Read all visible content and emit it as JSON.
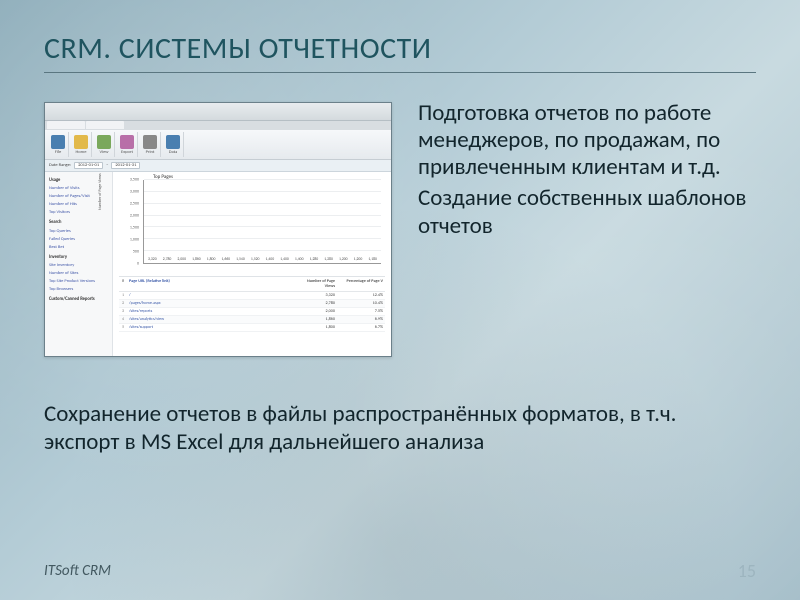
{
  "slide": {
    "title": "CRM. СИСТЕМЫ ОТЧЕТНОСТИ",
    "para1": "Подготовка отчетов по работе менеджеров, по продажам, по привлеченным клиентам и т.д.",
    "para2": "Создание собственных шаблонов отчетов",
    "para3": "Сохранение отчетов в файлы распространённых форматов, в т.ч. экспорт в MS Excel для дальнейшего анализа",
    "footer_left": "ITSoft CRM",
    "page_number": "15",
    "title_color": "#1f545f",
    "body_color": "#12252c",
    "title_fontsize": 30,
    "body_fontsize": 23
  },
  "screenshot": {
    "ribbon_labels": [
      "File",
      "Home",
      "View",
      "Export",
      "Print",
      "Data"
    ],
    "filter_date_label": "Date Range:",
    "filter_from": "2012-01-01",
    "filter_to": "2012-01-31",
    "leftnav": {
      "sections": [
        {
          "header": "Usage",
          "items": [
            "Number of Visits",
            "Number of Pages/Visit",
            "Number of Hits",
            "Top Visitors"
          ]
        },
        {
          "header": "Search",
          "items": [
            "Top Queries",
            "Failed Queries",
            "Best Bet"
          ]
        },
        {
          "header": "Inventory",
          "items": [
            "Site Inventory",
            "Number of Sites",
            "Top Site Product Versions",
            "Top Browsers"
          ]
        },
        {
          "header": "Custom/Canned Reports",
          "items": []
        }
      ]
    },
    "chart": {
      "type": "bar",
      "title": "Top Pages",
      "y_title": "Number of Page Views",
      "ylim": [
        0,
        3500
      ],
      "ytick_step": 500,
      "yticks": [
        0,
        500,
        1000,
        1500,
        2000,
        2500,
        3000,
        3500
      ],
      "values": [
        3320,
        2780,
        2000,
        1860,
        1800,
        1660,
        1540,
        1520,
        1400,
        1400,
        1400,
        1280,
        1280,
        1200,
        1200,
        1180
      ],
      "labels": [
        "3,320",
        "2,780",
        "2,000",
        "1,860",
        "1,800",
        "1,660",
        "1,540",
        "1,520",
        "1,400",
        "1,400",
        "1,400",
        "1,280",
        "1,280",
        "1,200",
        "1,200",
        "1,180"
      ],
      "bar_color": "#1f5696",
      "grid_color": "#eceef0",
      "background_color": "#ffffff",
      "label_fontsize": 4
    },
    "table": {
      "columns": [
        "#",
        "Page URL (Relative link)",
        "Number of Page Views",
        "Percentage of Page V"
      ],
      "rows": [
        [
          "1",
          "/",
          "3,320",
          "12.4%"
        ],
        [
          "2",
          "/pages/home.aspx",
          "2,780",
          "10.4%"
        ],
        [
          "3",
          "/sites/reports",
          "2,000",
          "7.5%"
        ],
        [
          "4",
          "/sites/analytics/view",
          "1,860",
          "6.9%"
        ],
        [
          "5",
          "/sites/support",
          "1,800",
          "6.7%"
        ]
      ]
    }
  }
}
